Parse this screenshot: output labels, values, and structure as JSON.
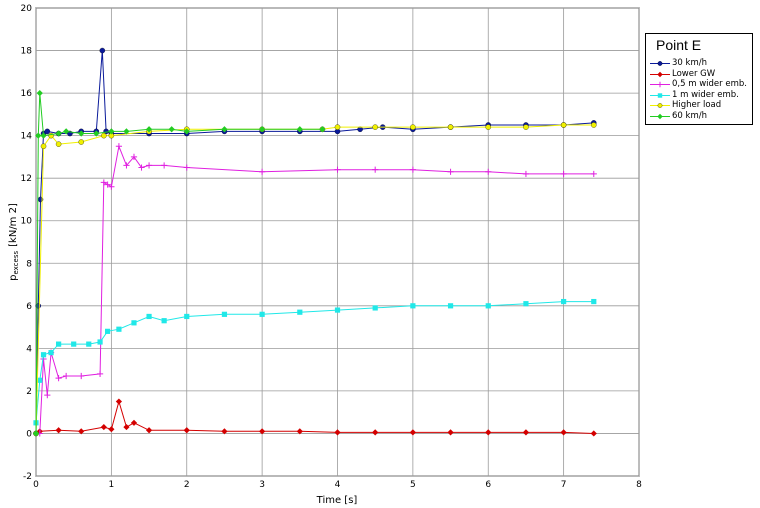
{
  "chart_data": {
    "type": "line",
    "title": "",
    "xlabel": "Time [s]",
    "ylabel_main": "p",
    "ylabel_sub": "excess",
    "ylabel_unit": "[kN/m 2]",
    "xlim": [
      0,
      8
    ],
    "ylim": [
      -2,
      20
    ],
    "x_ticks": [
      0,
      1,
      2,
      3,
      4,
      5,
      6,
      7,
      8
    ],
    "y_ticks": [
      -2,
      0,
      2,
      4,
      6,
      8,
      10,
      12,
      14,
      16,
      18,
      20
    ],
    "grid": true,
    "legend_title": "Point E",
    "legend_position": "right",
    "series": [
      {
        "name": "30 km/h",
        "color": "#0a1a9a",
        "marker": "circle",
        "x": [
          0,
          0.03,
          0.06,
          0.1,
          0.15,
          0.3,
          0.45,
          0.6,
          0.8,
          0.88,
          0.93,
          1.0,
          1.5,
          2.0,
          2.5,
          3.0,
          3.5,
          4.0,
          4.3,
          4.6,
          5.0,
          5.5,
          6.0,
          6.5,
          7.0,
          7.4
        ],
        "values": [
          0,
          6,
          11,
          14.1,
          14.2,
          14.1,
          14.1,
          14.2,
          14.2,
          18,
          14.2,
          14.1,
          14.1,
          14.1,
          14.2,
          14.2,
          14.2,
          14.2,
          14.3,
          14.4,
          14.3,
          14.4,
          14.5,
          14.5,
          14.5,
          14.6
        ]
      },
      {
        "name": "Lower GW",
        "color": "#d40000",
        "marker": "diamond",
        "x": [
          0.05,
          0.3,
          0.6,
          0.9,
          1.0,
          1.1,
          1.2,
          1.3,
          1.5,
          2.0,
          2.5,
          3.0,
          3.5,
          4.0,
          4.5,
          5.0,
          5.5,
          6.0,
          6.5,
          7.0,
          7.4
        ],
        "values": [
          0.1,
          0.15,
          0.1,
          0.3,
          0.2,
          1.5,
          0.3,
          0.5,
          0.15,
          0.15,
          0.1,
          0.1,
          0.1,
          0.05,
          0.05,
          0.05,
          0.05,
          0.05,
          0.05,
          0.05,
          0.0
        ]
      },
      {
        "name": "0,5 m wider emb.",
        "color": "#e020e0",
        "marker": "plus",
        "x": [
          0.05,
          0.1,
          0.15,
          0.2,
          0.3,
          0.4,
          0.6,
          0.85,
          0.9,
          0.95,
          1.0,
          1.1,
          1.2,
          1.3,
          1.4,
          1.5,
          1.7,
          2.0,
          3.0,
          4.0,
          4.5,
          5.0,
          5.5,
          6.0,
          6.5,
          7.0,
          7.4
        ],
        "values": [
          0,
          3.5,
          1.8,
          3.8,
          2.6,
          2.7,
          2.7,
          2.8,
          11.8,
          11.7,
          11.6,
          13.5,
          12.6,
          13.0,
          12.5,
          12.6,
          12.6,
          12.5,
          12.3,
          12.4,
          12.4,
          12.4,
          12.3,
          12.3,
          12.2,
          12.2,
          12.2
        ]
      },
      {
        "name": "1 m wider emb.",
        "color": "#20e8e8",
        "marker": "square",
        "x": [
          0,
          0.05,
          0.1,
          0.2,
          0.3,
          0.5,
          0.7,
          0.85,
          0.95,
          1.1,
          1.3,
          1.5,
          1.7,
          2.0,
          2.5,
          3.0,
          3.5,
          4.0,
          4.5,
          5.0,
          5.5,
          6.0,
          6.5,
          7.0,
          7.4
        ],
        "values": [
          0.5,
          2.5,
          3.7,
          3.8,
          4.2,
          4.2,
          4.2,
          4.3,
          4.8,
          4.9,
          5.2,
          5.5,
          5.3,
          5.5,
          5.6,
          5.6,
          5.7,
          5.8,
          5.9,
          6.0,
          6.0,
          6.0,
          6.1,
          6.2,
          6.2
        ]
      },
      {
        "name": "Higher load",
        "color": "#f0f000",
        "marker": "circle",
        "x": [
          0,
          0.1,
          0.2,
          0.3,
          0.6,
          0.9,
          1.0,
          1.5,
          2.0,
          3.0,
          3.8,
          4.0,
          4.5,
          5.0,
          5.5,
          6.0,
          6.5,
          7.0,
          7.4
        ],
        "values": [
          0,
          13.5,
          14.0,
          13.6,
          13.7,
          14.0,
          14.0,
          14.2,
          14.3,
          14.3,
          14.3,
          14.4,
          14.4,
          14.4,
          14.4,
          14.4,
          14.4,
          14.5,
          14.5
        ]
      },
      {
        "name": "60 km/h",
        "color": "#22cc22",
        "marker": "diamond",
        "x": [
          0,
          0.03,
          0.05,
          0.1,
          0.3,
          0.4,
          0.6,
          0.8,
          1.0,
          1.2,
          1.5,
          1.8,
          2.0,
          2.5,
          3.0,
          3.5,
          3.8
        ],
        "values": [
          0,
          14,
          16,
          14.0,
          14.1,
          14.2,
          14.1,
          14.1,
          14.2,
          14.2,
          14.3,
          14.3,
          14.2,
          14.3,
          14.3,
          14.3,
          14.3
        ]
      }
    ]
  }
}
